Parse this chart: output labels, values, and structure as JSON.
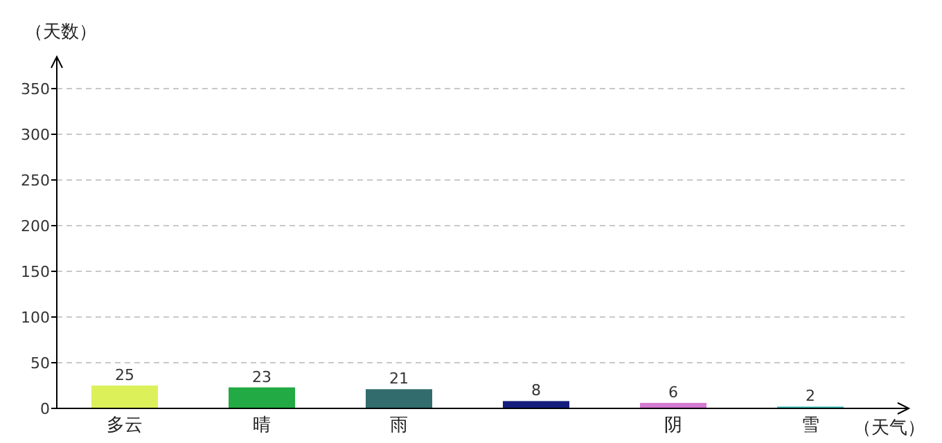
{
  "chart_data": {
    "type": "bar",
    "xlabel": "（天气）",
    "ylabel": "（天数）",
    "categories": [
      "多云",
      "晴",
      "雨",
      null,
      "阴",
      "雪"
    ],
    "values": [
      25,
      23,
      21,
      8,
      6,
      2
    ],
    "colors": [
      "#dcf05a",
      "#22aa44",
      "#336c6c",
      "#141c7c",
      "#d47ad0",
      "#3cc0b8"
    ],
    "ylim": [
      0,
      350
    ],
    "yticks": [
      0,
      50,
      100,
      150,
      200,
      250,
      300,
      350
    ],
    "grid": "y",
    "data_labels": true
  }
}
